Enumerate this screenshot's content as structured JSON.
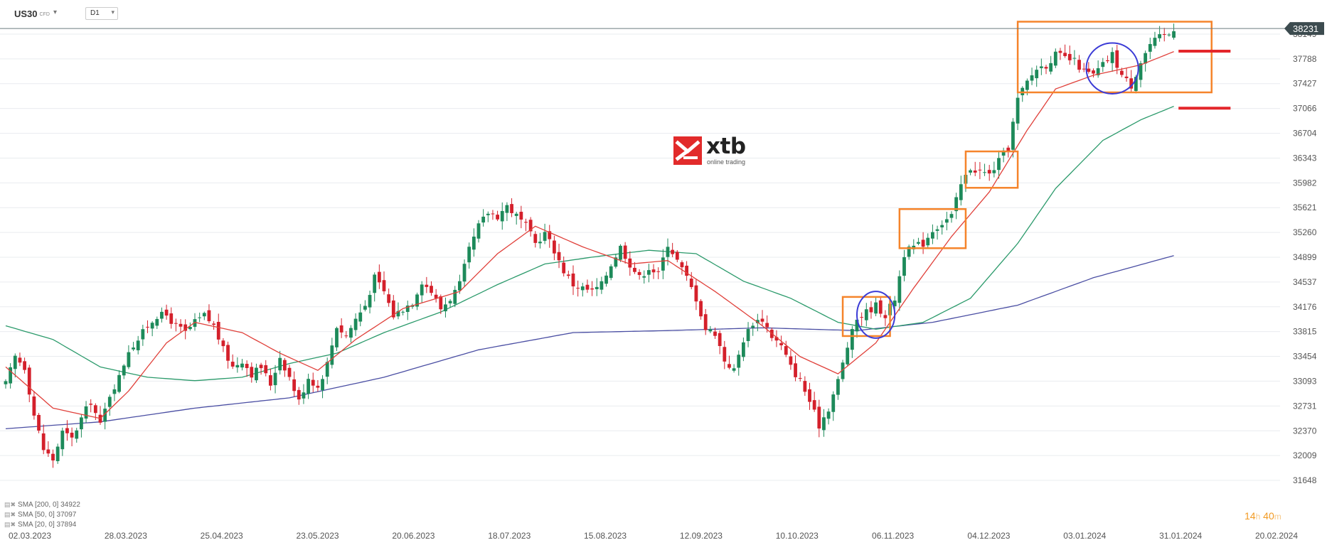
{
  "toolbar": {
    "symbol": "US30",
    "symbol_sub": "CFD",
    "timeframe": "D1"
  },
  "countdown": {
    "hours": "14",
    "h": "h",
    "minutes": "40",
    "m": "m"
  },
  "logo": {
    "brand": "xtb",
    "tagline": "online trading"
  },
  "legend": [
    {
      "label": "SMA",
      "params": "[200, 0]",
      "value": "34922"
    },
    {
      "label": "SMA",
      "params": "[50, 0]",
      "value": "37097"
    },
    {
      "label": "SMA",
      "params": "[20, 0]",
      "value": "37894"
    }
  ],
  "chart_data": {
    "type": "candlestick",
    "instrument": "US30",
    "timeframe": "D1",
    "current_price": 38231,
    "y_ticks": [
      31648,
      32009,
      32370,
      32731,
      33093,
      33454,
      33815,
      34176,
      34537,
      34899,
      35260,
      35621,
      35982,
      36343,
      36704,
      37066,
      37427,
      37788,
      38149
    ],
    "y_range": [
      31400,
      38300
    ],
    "x_labels": [
      "02.03.2023",
      "28.03.2023",
      "25.04.2023",
      "23.05.2023",
      "20.06.2023",
      "18.07.2023",
      "15.08.2023",
      "12.09.2023",
      "10.10.2023",
      "06.11.2023",
      "04.12.2023",
      "03.01.2024",
      "31.01.2024",
      "20.02.2024"
    ],
    "close_path": [
      [
        0,
        33050
      ],
      [
        2,
        33450
      ],
      [
        4,
        33300
      ],
      [
        6,
        32600
      ],
      [
        8,
        32100
      ],
      [
        10,
        31950
      ],
      [
        12,
        32350
      ],
      [
        14,
        32250
      ],
      [
        16,
        32550
      ],
      [
        18,
        32800
      ],
      [
        20,
        32450
      ],
      [
        22,
        32900
      ],
      [
        24,
        33150
      ],
      [
        26,
        33550
      ],
      [
        28,
        33700
      ],
      [
        30,
        33900
      ],
      [
        32,
        34050
      ],
      [
        34,
        34050
      ],
      [
        36,
        33900
      ],
      [
        38,
        33800
      ],
      [
        40,
        33950
      ],
      [
        42,
        34050
      ],
      [
        44,
        33900
      ],
      [
        46,
        33550
      ],
      [
        48,
        33300
      ],
      [
        50,
        33400
      ],
      [
        52,
        33200
      ],
      [
        54,
        33300
      ],
      [
        56,
        33050
      ],
      [
        58,
        33450
      ],
      [
        60,
        33150
      ],
      [
        62,
        32800
      ],
      [
        64,
        33150
      ],
      [
        66,
        33000
      ],
      [
        68,
        33350
      ],
      [
        70,
        33900
      ],
      [
        72,
        33750
      ],
      [
        74,
        34000
      ],
      [
        76,
        34200
      ],
      [
        78,
        34600
      ],
      [
        80,
        34400
      ],
      [
        82,
        34050
      ],
      [
        84,
        34150
      ],
      [
        86,
        34250
      ],
      [
        88,
        34550
      ],
      [
        90,
        34400
      ],
      [
        92,
        34150
      ],
      [
        94,
        34300
      ],
      [
        96,
        34500
      ],
      [
        98,
        35000
      ],
      [
        100,
        35350
      ],
      [
        102,
        35550
      ],
      [
        104,
        35500
      ],
      [
        106,
        35650
      ],
      [
        108,
        35500
      ],
      [
        110,
        35350
      ],
      [
        112,
        35100
      ],
      [
        114,
        35250
      ],
      [
        116,
        35000
      ],
      [
        118,
        34700
      ],
      [
        120,
        34500
      ],
      [
        122,
        34450
      ],
      [
        124,
        34400
      ],
      [
        126,
        34500
      ],
      [
        128,
        34800
      ],
      [
        130,
        35050
      ],
      [
        132,
        34800
      ],
      [
        134,
        34600
      ],
      [
        136,
        34750
      ],
      [
        138,
        34650
      ],
      [
        140,
        35100
      ],
      [
        142,
        34850
      ],
      [
        144,
        34600
      ],
      [
        146,
        34300
      ],
      [
        148,
        33850
      ],
      [
        150,
        33800
      ],
      [
        152,
        33400
      ],
      [
        154,
        33250
      ],
      [
        156,
        33700
      ],
      [
        158,
        33950
      ],
      [
        160,
        34000
      ],
      [
        162,
        33750
      ],
      [
        164,
        33600
      ],
      [
        166,
        33300
      ],
      [
        168,
        33100
      ],
      [
        170,
        32800
      ],
      [
        172,
        32450
      ],
      [
        174,
        32700
      ],
      [
        176,
        33100
      ],
      [
        178,
        33600
      ],
      [
        180,
        34000
      ],
      [
        182,
        34100
      ],
      [
        184,
        34200
      ],
      [
        186,
        34050
      ],
      [
        188,
        34300
      ],
      [
        190,
        34950
      ],
      [
        192,
        35050
      ],
      [
        194,
        35100
      ],
      [
        196,
        35300
      ],
      [
        198,
        35400
      ],
      [
        200,
        35500
      ],
      [
        202,
        35950
      ],
      [
        204,
        36200
      ],
      [
        206,
        36150
      ],
      [
        208,
        36100
      ],
      [
        210,
        36300
      ],
      [
        212,
        36500
      ],
      [
        214,
        37200
      ],
      [
        216,
        37450
      ],
      [
        218,
        37650
      ],
      [
        220,
        37700
      ],
      [
        222,
        37850
      ],
      [
        224,
        37800
      ],
      [
        226,
        37750
      ],
      [
        228,
        37600
      ],
      [
        230,
        37550
      ],
      [
        232,
        37700
      ],
      [
        234,
        37850
      ],
      [
        236,
        37550
      ],
      [
        238,
        37400
      ],
      [
        240,
        37750
      ],
      [
        242,
        38000
      ],
      [
        244,
        38100
      ],
      [
        246,
        38150
      ],
      [
        247,
        38231
      ]
    ],
    "sma_20_path": [
      [
        0,
        33300
      ],
      [
        10,
        32700
      ],
      [
        20,
        32550
      ],
      [
        26,
        32950
      ],
      [
        34,
        33650
      ],
      [
        40,
        33950
      ],
      [
        50,
        33800
      ],
      [
        58,
        33500
      ],
      [
        66,
        33250
      ],
      [
        74,
        33700
      ],
      [
        84,
        34150
      ],
      [
        96,
        34400
      ],
      [
        104,
        34950
      ],
      [
        112,
        35350
      ],
      [
        122,
        35050
      ],
      [
        132,
        34800
      ],
      [
        140,
        34850
      ],
      [
        150,
        34400
      ],
      [
        160,
        33900
      ],
      [
        168,
        33450
      ],
      [
        176,
        33200
      ],
      [
        184,
        33650
      ],
      [
        192,
        34450
      ],
      [
        200,
        35200
      ],
      [
        208,
        35850
      ],
      [
        216,
        36750
      ],
      [
        222,
        37350
      ],
      [
        230,
        37550
      ],
      [
        240,
        37700
      ],
      [
        247,
        37894
      ]
    ],
    "sma_50_path": [
      [
        0,
        33900
      ],
      [
        10,
        33700
      ],
      [
        20,
        33300
      ],
      [
        30,
        33150
      ],
      [
        40,
        33100
      ],
      [
        50,
        33150
      ],
      [
        60,
        33350
      ],
      [
        70,
        33500
      ],
      [
        80,
        33800
      ],
      [
        92,
        34100
      ],
      [
        104,
        34500
      ],
      [
        114,
        34800
      ],
      [
        124,
        34900
      ],
      [
        136,
        35000
      ],
      [
        146,
        34950
      ],
      [
        156,
        34550
      ],
      [
        166,
        34300
      ],
      [
        176,
        33950
      ],
      [
        184,
        33850
      ],
      [
        194,
        33950
      ],
      [
        204,
        34300
      ],
      [
        214,
        35100
      ],
      [
        222,
        35900
      ],
      [
        232,
        36600
      ],
      [
        240,
        36900
      ],
      [
        247,
        37097
      ]
    ],
    "sma_200_path": [
      [
        0,
        32400
      ],
      [
        20,
        32500
      ],
      [
        40,
        32700
      ],
      [
        60,
        32850
      ],
      [
        80,
        33150
      ],
      [
        100,
        33550
      ],
      [
        120,
        33800
      ],
      [
        140,
        33830
      ],
      [
        160,
        33870
      ],
      [
        180,
        33830
      ],
      [
        196,
        33950
      ],
      [
        214,
        34200
      ],
      [
        230,
        34600
      ],
      [
        247,
        34922
      ]
    ],
    "shapes": [
      {
        "type": "rect",
        "from_day": 177,
        "to_day": 187,
        "from_price": 33750,
        "to_price": 34320,
        "color": "#f5842b"
      },
      {
        "type": "rect",
        "from_day": 189,
        "to_day": 203,
        "from_price": 35030,
        "to_price": 35600,
        "color": "#f5842b"
      },
      {
        "type": "rect",
        "from_day": 203,
        "to_day": 214,
        "from_price": 35910,
        "to_price": 36440,
        "color": "#f5842b"
      },
      {
        "type": "rect",
        "from_day": 214,
        "to_day": 255,
        "from_price": 37300,
        "to_price": 38330,
        "color": "#f5842b"
      },
      {
        "type": "ellipse",
        "center_day": 184,
        "center_price": 34060,
        "r_days": 4,
        "r_price": 340,
        "color": "#3b3bd6"
      },
      {
        "type": "ellipse",
        "center_day": 234,
        "center_price": 37650,
        "r_days": 5.5,
        "r_price": 370,
        "color": "#3b3bd6"
      },
      {
        "type": "level",
        "from_day": 248,
        "to_day": 259,
        "price": 37900,
        "color": "#e3262b"
      },
      {
        "type": "level",
        "from_day": 248,
        "to_day": 259,
        "price": 37070,
        "color": "#e3262b"
      }
    ],
    "colors": {
      "up": "#1d8a5a",
      "down": "#d4202b",
      "sma_20": "#e0403a",
      "sma_50": "#2b9a6b",
      "sma_200": "#4a4ea3",
      "price_line": "#6b7b7f",
      "price_tag_bg": "#3c4b4f",
      "price_tag_fg": "#ffffff",
      "axis_text": "#555555",
      "grid": "#e9ecef",
      "box": "#f5842b",
      "circle": "#3b3bd6",
      "level": "#e3262b"
    }
  }
}
